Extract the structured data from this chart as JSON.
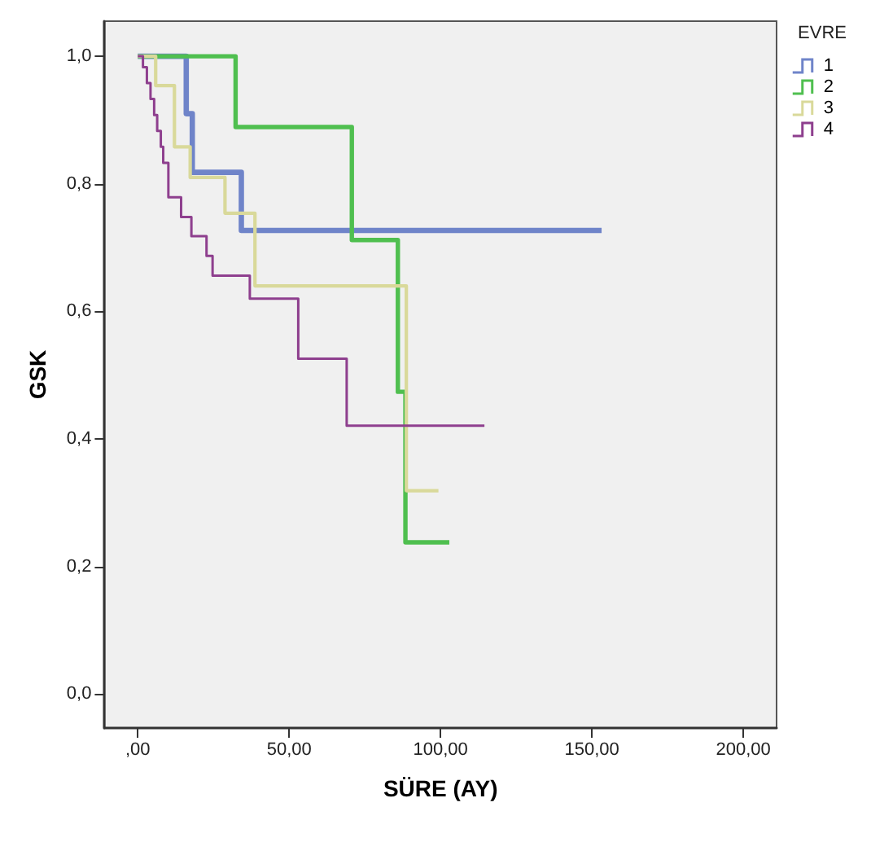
{
  "chart_data": {
    "type": "step",
    "xlabel": "SÜRE (AY)",
    "ylabel": "GSK",
    "legend_title": "EVRE",
    "legend": "top right",
    "grid": false,
    "marker": "none",
    "line_style": "solid",
    "xlim": [
      -11,
      211
    ],
    "ylim": [
      -0.053,
      1.055
    ],
    "xticks": [
      {
        "value": 0,
        "label": ",00"
      },
      {
        "value": 50,
        "label": "50,00"
      },
      {
        "value": 100,
        "label": "100,00"
      },
      {
        "value": 150,
        "label": "150,00"
      },
      {
        "value": 200,
        "label": "200,00"
      }
    ],
    "yticks": [
      {
        "value": 0,
        "label": "0,0"
      },
      {
        "value": 0.2,
        "label": "0,2"
      },
      {
        "value": 0.4,
        "label": "0,4"
      },
      {
        "value": 0.6,
        "label": "0,6"
      },
      {
        "value": 0.8,
        "label": "0,8"
      },
      {
        "value": 1,
        "label": "1,0"
      }
    ],
    "series": [
      {
        "name": "1",
        "color": "#6f84c9",
        "x": [
          0,
          16,
          18,
          34.2,
          153.2
        ],
        "values": [
          1.0,
          0.91,
          0.818,
          0.727,
          0.727
        ]
      },
      {
        "name": "2",
        "color": "#4fbf4f",
        "x": [
          0,
          32.3,
          70.7,
          85.9,
          88.4,
          102.9
        ],
        "values": [
          1.0,
          0.889,
          0.712,
          0.474,
          0.238,
          0.238
        ]
      },
      {
        "name": "3",
        "color": "#d9d99a",
        "x": [
          0,
          5.9,
          12.1,
          17.3,
          28.8,
          38.7,
          88.7,
          99.3
        ],
        "values": [
          1.0,
          0.954,
          0.858,
          0.81,
          0.754,
          0.64,
          0.319,
          0.319
        ]
      },
      {
        "name": "4",
        "color": "#8e3f8e",
        "x": [
          0,
          1.7,
          3.0,
          4.2,
          5.4,
          6.4,
          7.6,
          8.4,
          10.1,
          14.3,
          17.7,
          22.7,
          24.7,
          37.0,
          53.0,
          69.0,
          114.5
        ],
        "values": [
          1.0,
          0.983,
          0.958,
          0.933,
          0.908,
          0.883,
          0.858,
          0.833,
          0.779,
          0.748,
          0.718,
          0.687,
          0.656,
          0.62,
          0.526,
          0.421,
          0.421
        ]
      }
    ]
  }
}
